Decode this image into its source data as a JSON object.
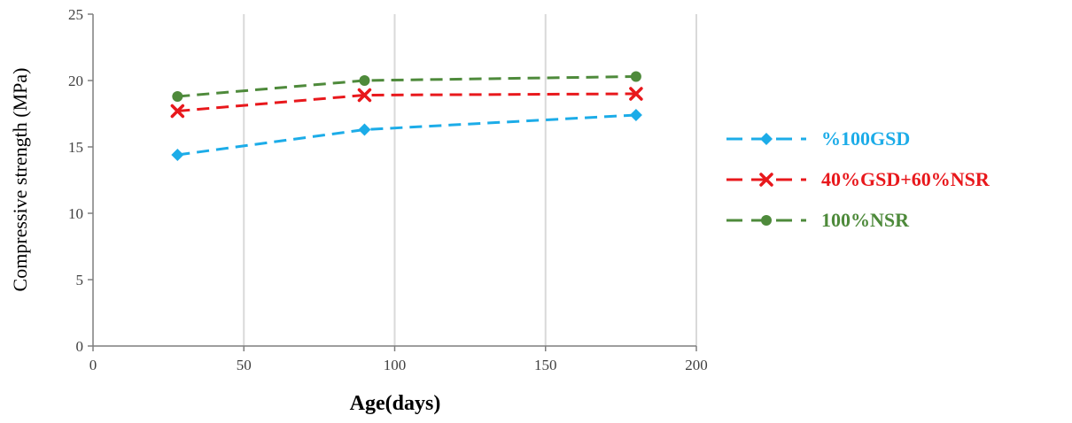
{
  "chart_data": {
    "type": "line",
    "title": "",
    "xlabel": "Age(days)",
    "ylabel": "Compressive strength (MPa)",
    "xlim": [
      0,
      200
    ],
    "ylim": [
      0,
      25
    ],
    "xticks": [
      0,
      50,
      100,
      150,
      200
    ],
    "yticks": [
      0,
      5,
      10,
      15,
      20,
      25
    ],
    "x_tick_labels": [
      "0",
      "50",
      "100",
      "150",
      "200"
    ],
    "y_tick_labels": [
      "0",
      "5",
      "10",
      "15",
      "20",
      "25"
    ],
    "grid": "vertical",
    "legend_position": "right",
    "x": [
      28,
      90,
      180
    ],
    "series": [
      {
        "name": "%100GSD",
        "values": [
          14.4,
          16.3,
          17.4
        ],
        "color": "#1CACE8",
        "marker": "diamond",
        "line_style": "dashed"
      },
      {
        "name": "40%GSD+60%NSR",
        "values": [
          17.7,
          18.9,
          19.0
        ],
        "color": "#E8181C",
        "marker": "x",
        "line_style": "dashed"
      },
      {
        "name": "100%NSR",
        "values": [
          18.8,
          20.0,
          20.3
        ],
        "color": "#4E8A3B",
        "marker": "circle",
        "line_style": "dashed"
      }
    ]
  }
}
